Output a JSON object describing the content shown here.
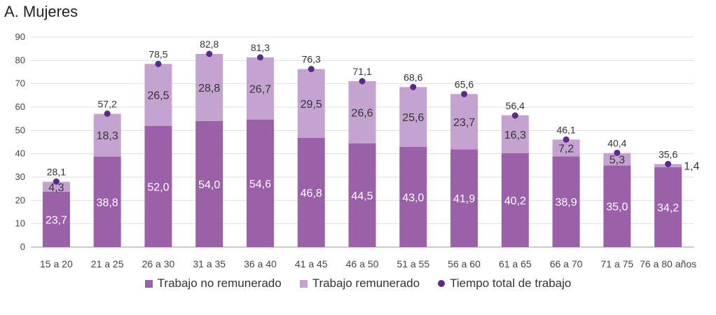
{
  "chart_data": {
    "type": "bar",
    "title": "A. Mujeres",
    "categories": [
      "15 a 20",
      "21 a 25",
      "26 a 30",
      "31 a 35",
      "36 a 40",
      "41 a 45",
      "46 a 50",
      "51 a 55",
      "56 a 60",
      "61 a 65",
      "66 a 70",
      "71 a 75",
      "76 a 80 años"
    ],
    "series": [
      {
        "name": "Trabajo no remunerado",
        "kind": "stacked-bar",
        "color": "#9a60a8",
        "values": [
          23.7,
          38.8,
          52.0,
          54.0,
          54.6,
          46.8,
          44.5,
          43.0,
          41.9,
          40.2,
          38.9,
          35.0,
          34.2
        ],
        "labels": [
          "23,7",
          "38,8",
          "52,0",
          "54,0",
          "54,6",
          "46,8",
          "44,5",
          "43,0",
          "41,9",
          "40,2",
          "38,9",
          "35,0",
          "34,2"
        ]
      },
      {
        "name": "Trabajo remunerado",
        "kind": "stacked-bar",
        "color": "#c5a3d0",
        "values": [
          4.3,
          18.3,
          26.5,
          28.8,
          26.7,
          29.5,
          26.6,
          25.6,
          23.7,
          16.3,
          7.2,
          5.3,
          1.4
        ],
        "labels": [
          "4,3",
          "18,3",
          "26,5",
          "28,8",
          "26,7",
          "29,5",
          "26,6",
          "25,6",
          "23,7",
          "16,3",
          "7,2",
          "5,3",
          "1,4"
        ]
      },
      {
        "name": "Tiempo total de trabajo",
        "kind": "point",
        "color": "#5b2a86",
        "values": [
          28.1,
          57.2,
          78.5,
          82.8,
          81.3,
          76.3,
          71.1,
          68.6,
          65.6,
          56.4,
          46.1,
          40.4,
          35.6
        ],
        "labels": [
          "28,1",
          "57,2",
          "78,5",
          "82,8",
          "81,3",
          "76,3",
          "71,1",
          "68,6",
          "65,6",
          "56,4",
          "46,1",
          "40,4",
          "35,6"
        ]
      }
    ],
    "ylim": [
      0,
      90
    ],
    "yticks": [
      0,
      10,
      20,
      30,
      40,
      50,
      60,
      70,
      80,
      90
    ],
    "grid": true,
    "legend": "bottom"
  }
}
